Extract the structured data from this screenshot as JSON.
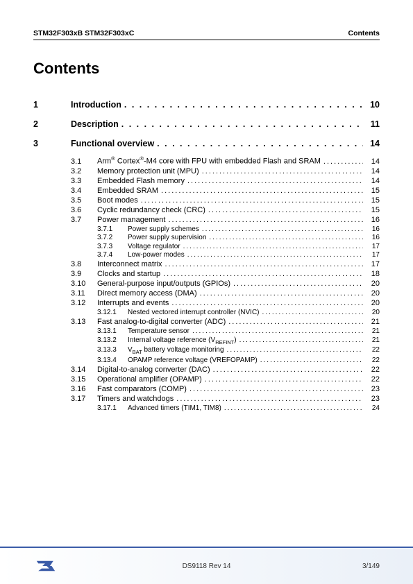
{
  "header": {
    "left": "STM32F303xB STM32F303xC",
    "right": "Contents"
  },
  "title": "Contents",
  "toc": [
    {
      "level": 1,
      "num": "1",
      "label": "Introduction",
      "page": "10"
    },
    {
      "level": 1,
      "num": "2",
      "label": "Description",
      "page": "11"
    },
    {
      "level": 1,
      "num": "3",
      "label": "Functional overview",
      "page": "14"
    },
    {
      "level": 2,
      "num": "3.1",
      "label_html": "Arm<sup>®</sup> Cortex<sup>®</sup>-M4 core with FPU with embedded Flash and SRAM",
      "page": "14"
    },
    {
      "level": 2,
      "num": "3.2",
      "label": "Memory protection unit (MPU)",
      "page": "14"
    },
    {
      "level": 2,
      "num": "3.3",
      "label": "Embedded Flash memory",
      "page": "14"
    },
    {
      "level": 2,
      "num": "3.4",
      "label": "Embedded SRAM",
      "page": "15"
    },
    {
      "level": 2,
      "num": "3.5",
      "label": "Boot modes",
      "page": "15"
    },
    {
      "level": 2,
      "num": "3.6",
      "label": "Cyclic redundancy check (CRC)",
      "page": "15"
    },
    {
      "level": 2,
      "num": "3.7",
      "label": "Power management",
      "page": "16"
    },
    {
      "level": 3,
      "num": "3.7.1",
      "label": "Power supply schemes",
      "page": "16"
    },
    {
      "level": 3,
      "num": "3.7.2",
      "label": "Power supply supervision",
      "page": "16"
    },
    {
      "level": 3,
      "num": "3.7.3",
      "label": "Voltage regulator",
      "page": "17"
    },
    {
      "level": 3,
      "num": "3.7.4",
      "label": "Low-power modes",
      "page": "17"
    },
    {
      "level": 2,
      "num": "3.8",
      "label": "Interconnect matrix",
      "page": "17"
    },
    {
      "level": 2,
      "num": "3.9",
      "label": "Clocks and startup",
      "page": "18"
    },
    {
      "level": 2,
      "num": "3.10",
      "label": "General-purpose input/outputs (GPIOs)",
      "page": "20"
    },
    {
      "level": 2,
      "num": "3.11",
      "label": "Direct memory access (DMA)",
      "page": "20"
    },
    {
      "level": 2,
      "num": "3.12",
      "label": "Interrupts and events",
      "page": "20"
    },
    {
      "level": 3,
      "num": "3.12.1",
      "label": "Nested vectored interrupt controller (NVIC)",
      "page": "20"
    },
    {
      "level": 2,
      "num": "3.13",
      "label": "Fast analog-to-digital converter (ADC)",
      "page": "21"
    },
    {
      "level": 3,
      "num": "3.13.1",
      "label": "Temperature sensor",
      "page": "21"
    },
    {
      "level": 3,
      "num": "3.13.2",
      "label_html": "Internal voltage reference (V<sub>REFINT</sub>)",
      "page": "21"
    },
    {
      "level": 3,
      "num": "3.13.3",
      "label_html": "V<sub>BAT</sub> battery voltage monitoring",
      "page": "22"
    },
    {
      "level": 3,
      "num": "3.13.4",
      "label": "OPAMP reference voltage (VREFOPAMP)",
      "page": "22"
    },
    {
      "level": 2,
      "num": "3.14",
      "label": "Digital-to-analog converter (DAC)",
      "page": "22"
    },
    {
      "level": 2,
      "num": "3.15",
      "label": "Operational amplifier (OPAMP)",
      "page": "22"
    },
    {
      "level": 2,
      "num": "3.16",
      "label": "Fast comparators (COMP)",
      "page": "23"
    },
    {
      "level": 2,
      "num": "3.17",
      "label": "Timers and watchdogs",
      "page": "23"
    },
    {
      "level": 3,
      "num": "3.17.1",
      "label": "Advanced timers (TIM1, TIM8)",
      "page": "24"
    }
  ],
  "footer": {
    "center": "DS9118 Rev 14",
    "right": "3/149"
  },
  "colors": {
    "rule": "#3b5ca8",
    "logo": "#3b5ca8"
  }
}
